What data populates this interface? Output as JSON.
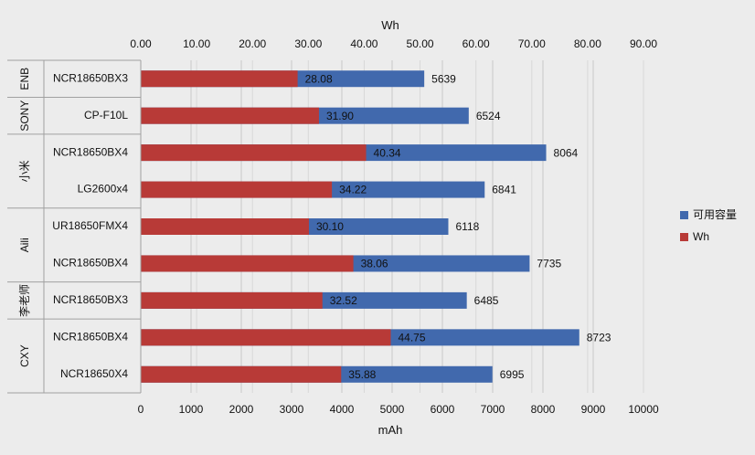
{
  "chart_data": {
    "type": "bar",
    "orientation": "horizontal",
    "title": "",
    "top_axis": {
      "label": "Wh",
      "range": [
        0,
        90
      ],
      "ticks": [
        "0.00",
        "10.00",
        "20.00",
        "30.00",
        "40.00",
        "50.00",
        "60.00",
        "70.00",
        "80.00",
        "90.00"
      ]
    },
    "bottom_axis": {
      "label": "mAh",
      "range": [
        0,
        10000
      ],
      "ticks": [
        "0",
        "1000",
        "2000",
        "3000",
        "4000",
        "5000",
        "6000",
        "7000",
        "8000",
        "9000",
        "10000"
      ]
    },
    "grid": true,
    "legend_position": "right",
    "groups": [
      {
        "name": "ENB",
        "items": [
          "NCR18650BX3"
        ]
      },
      {
        "name": "SONY",
        "items": [
          "CP-F10L"
        ]
      },
      {
        "name": "小米",
        "items": [
          "NCR18650BX4",
          "LG2600x4"
        ]
      },
      {
        "name": "Aili",
        "items": [
          "UR18650FMX4",
          "NCR18650BX4"
        ]
      },
      {
        "name": "李老师",
        "items": [
          "NCR18650BX3"
        ]
      },
      {
        "name": "CXY",
        "items": [
          "NCR18650BX4",
          "NCR18650X4"
        ]
      }
    ],
    "categories": [
      "NCR18650BX3",
      "CP-F10L",
      "NCR18650BX4",
      "LG2600x4",
      "UR18650FMX4",
      "NCR18650BX4",
      "NCR18650BX3",
      "NCR18650BX4",
      "NCR18650X4"
    ],
    "series": [
      {
        "name": "可用容量",
        "axis": "bottom",
        "color": "#4169ad",
        "values": [
          5639,
          6524,
          8064,
          6841,
          6118,
          7735,
          6485,
          8723,
          6995
        ],
        "labels": [
          "5639",
          "6524",
          "8064",
          "6841",
          "6118",
          "7735",
          "6485",
          "8723",
          "6995"
        ]
      },
      {
        "name": "Wh",
        "axis": "top",
        "color": "#b83a37",
        "values": [
          28.08,
          31.9,
          40.34,
          34.22,
          30.1,
          38.06,
          32.52,
          44.75,
          35.88
        ],
        "labels": [
          "28.08",
          "31.90",
          "40.34",
          "34.22",
          "30.10",
          "38.06",
          "32.52",
          "44.75",
          "35.88"
        ]
      }
    ]
  }
}
